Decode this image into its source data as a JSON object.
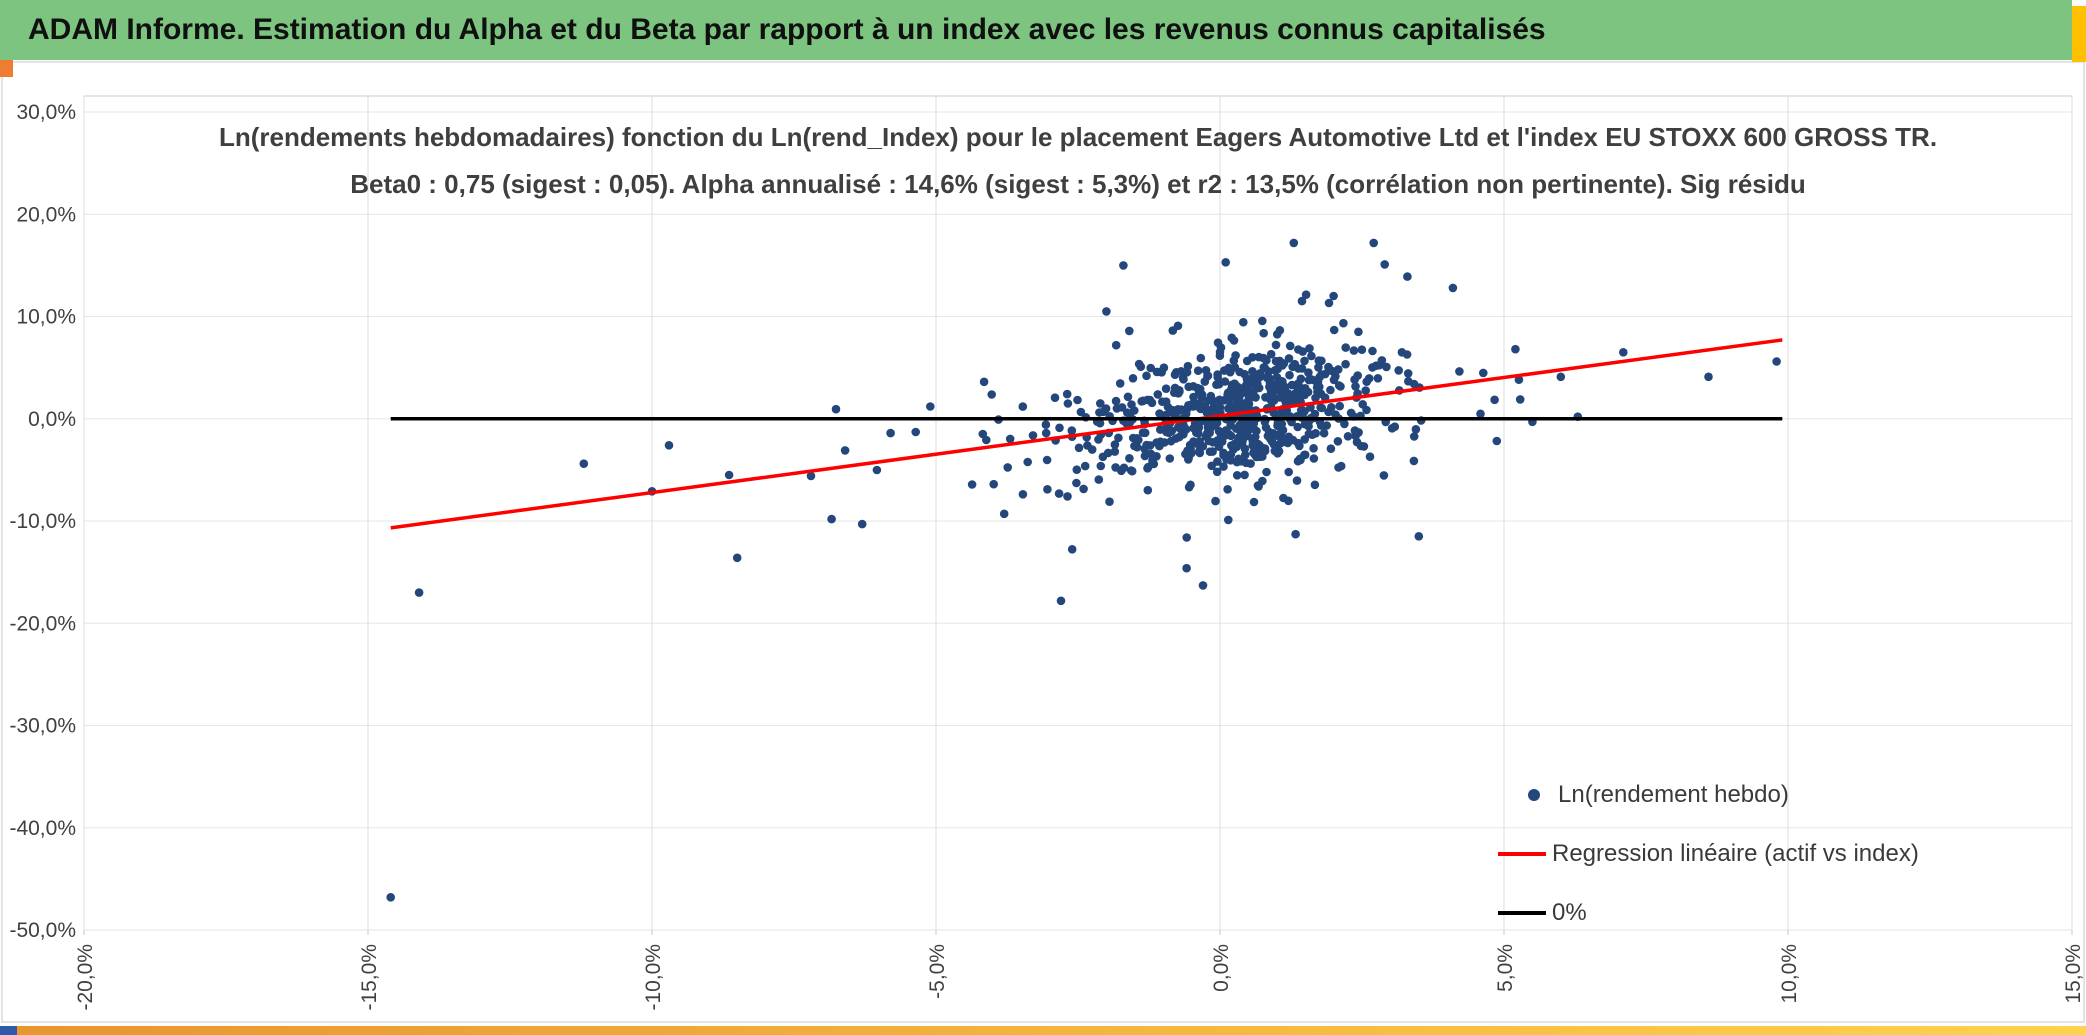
{
  "header": {
    "title": "ADAM Informe. Estimation du Alpha et du Beta par rapport à un index avec les revenus connus capitalisés",
    "bg": "#7CC47F"
  },
  "accents": {
    "yellow_right": "#FFC000",
    "orange_left": "#ED7D31",
    "bottom_strip_left": "#E8952E",
    "bottom_strip_right": "#FFD24C",
    "bottom_blue_square": "#2E5AA8"
  },
  "chart_data": {
    "type": "scatter",
    "title_line1": "Ln(rendements hebdomadaires) fonction du Ln(rend_Index) pour le placement Eagers Automotive Ltd et l'index EU STOXX 600 GROSS TR.",
    "title_line2": "Beta0 : 0,75 (sigest : 0,05). Alpha annualisé : 14,6% (sigest : 5,3%) et r2 : 13,5% (corrélation non pertinente). Sig résidu",
    "stats": {
      "beta0": "0,75",
      "beta0_sigest": "0,05",
      "alpha_annualise": "14,6%",
      "alpha_sigest": "5,3%",
      "r2": "13,5%",
      "r2_note": "corrélation non pertinente",
      "placement": "Eagers Automotive Ltd",
      "index": "EU STOXX 600 GROSS TR"
    },
    "xlim": [
      -0.2,
      0.15
    ],
    "ylim": [
      -0.5,
      0.3
    ],
    "grid": true,
    "legend_position": "bottom-right",
    "x_ticks": [
      {
        "v": -0.2,
        "label": "-20,0%"
      },
      {
        "v": -0.15,
        "label": "-15,0%"
      },
      {
        "v": -0.1,
        "label": "-10,0%"
      },
      {
        "v": -0.05,
        "label": "-5,0%"
      },
      {
        "v": 0.0,
        "label": "0,0%"
      },
      {
        "v": 0.05,
        "label": "5,0%"
      },
      {
        "v": 0.1,
        "label": "10,0%"
      },
      {
        "v": 0.15,
        "label": "15,0%"
      }
    ],
    "y_ticks": [
      {
        "v": 0.3,
        "label": "30,0%"
      },
      {
        "v": 0.2,
        "label": "20,0%"
      },
      {
        "v": 0.1,
        "label": "10,0%"
      },
      {
        "v": 0.0,
        "label": "0,0%"
      },
      {
        "v": -0.1,
        "label": "-10,0%"
      },
      {
        "v": -0.2,
        "label": "-20,0%"
      },
      {
        "v": -0.3,
        "label": "-30,0%"
      },
      {
        "v": -0.4,
        "label": "-40,0%"
      },
      {
        "v": -0.5,
        "label": "-50,0%"
      }
    ],
    "series": [
      {
        "name": "Ln(rendement hebdo)",
        "type": "scatter",
        "color": "#24477B",
        "marker": "circle",
        "marker_diameter_px": 8.6,
        "cluster": {
          "seed": 1337,
          "count": 700,
          "slope": 0.75,
          "intercept": 0.0028,
          "x_mean": 0.004,
          "x_sd_core": 0.012,
          "x_sd_mid": 0.024,
          "x_tail_mean": -0.015,
          "x_sd_tail": 0.04,
          "p_core": 0.8,
          "p_mid": 0.17,
          "resid_sd": 0.031,
          "resid_sd_tail": 0.055,
          "p_resid_tail": 0.1,
          "x_range": [
            -0.118,
            0.0985
          ],
          "y_range": [
            -0.175,
            0.172
          ]
        },
        "outlier_points": [
          [
            -0.146,
            -0.468
          ],
          [
            -0.141,
            -0.17
          ],
          [
            -0.085,
            -0.136
          ],
          [
            -0.1,
            -0.071
          ],
          [
            -0.112,
            -0.044
          ],
          [
            -0.097,
            -0.026
          ],
          [
            -0.028,
            -0.178
          ],
          [
            -0.003,
            -0.163
          ],
          [
            0.035,
            -0.115
          ],
          [
            -0.017,
            0.15
          ],
          [
            0.013,
            0.172
          ],
          [
            0.001,
            0.153
          ],
          [
            0.029,
            0.151
          ],
          [
            0.033,
            0.139
          ],
          [
            0.041,
            0.128
          ],
          [
            0.098,
            0.056
          ],
          [
            0.071,
            0.065
          ],
          [
            0.06,
            0.041
          ],
          [
            0.086,
            0.041
          ],
          [
            -0.063,
            -0.103
          ],
          [
            -0.072,
            -0.056
          ],
          [
            -0.058,
            -0.014
          ],
          [
            -0.051,
            0.012
          ],
          [
            -0.066,
            -0.031
          ],
          [
            0.055,
            -0.003
          ],
          [
            0.063,
            0.002
          ],
          [
            -0.02,
            0.105
          ],
          [
            0.02,
            0.12
          ],
          [
            -0.038,
            -0.093
          ],
          [
            0.052,
            0.068
          ]
        ]
      },
      {
        "name": "Regression linéaire (actif vs index)",
        "type": "line",
        "color": "#FF0000",
        "points": [
          [
            -0.146,
            -0.1067
          ],
          [
            0.099,
            0.0771
          ]
        ]
      },
      {
        "name": "0%",
        "type": "line",
        "color": "#000000",
        "points": [
          [
            -0.146,
            0.0
          ],
          [
            0.099,
            0.0
          ]
        ]
      }
    ],
    "colors": {
      "gridline": "#DCDCDC",
      "plot_border": "#C9C9C9",
      "axis_label": "#404040",
      "title": "#3F3F3F"
    }
  }
}
